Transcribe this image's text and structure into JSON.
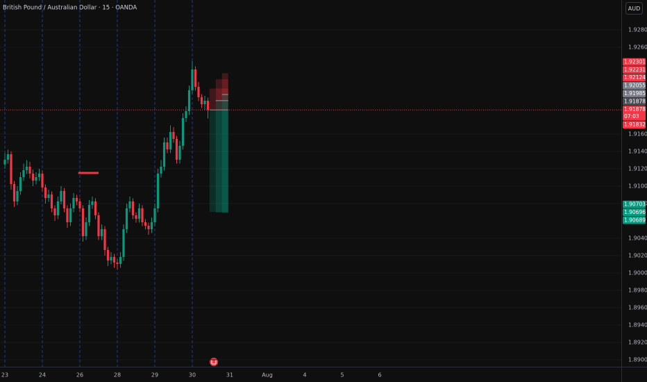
{
  "chart_data": {
    "type": "candlestick",
    "title": "British Pound / Australian Dollar · 15 · OANDA",
    "currency": "AUD",
    "x_labels": [
      "23",
      "24",
      "26",
      "28",
      "29",
      "30",
      "31",
      "Aug",
      "4",
      "5",
      "6"
    ],
    "open": [
      1.9125,
      1.91304,
      1.91368,
      1.91024,
      1.90824,
      1.90944,
      1.91104,
      1.91184,
      1.91224,
      1.91144,
      1.91064,
      1.91104,
      1.91144,
      1.90984,
      1.90864,
      1.90904,
      1.90744,
      1.90664,
      1.90824,
      1.90944,
      1.90744,
      1.90584,
      1.90744,
      1.90864,
      1.90824,
      1.90744,
      1.90424,
      1.90584,
      1.90784,
      1.90824,
      1.90664,
      1.90424,
      1.90504,
      1.90264,
      1.90144,
      1.90184,
      1.9012,
      1.90104,
      1.90184,
      1.90504,
      1.90744,
      1.90824,
      1.90664,
      1.90624,
      1.90744,
      1.90584,
      1.90544,
      1.90504,
      1.90584,
      1.90744,
      1.91144,
      1.91224,
      1.91504,
      1.91424,
      1.91624,
      1.91544,
      1.91304,
      1.91464,
      1.91784,
      1.91864,
      1.92104,
      1.92344,
      1.92144,
      1.92024,
      1.91944,
      1.91984
    ],
    "high": [
      1.9138,
      1.9142,
      1.914,
      1.9106,
      1.91,
      1.9116,
      1.9126,
      1.913,
      1.9128,
      1.9119,
      1.9116,
      1.912,
      1.9118,
      1.9102,
      1.9096,
      1.9094,
      1.9078,
      1.9088,
      1.91,
      1.9098,
      1.9078,
      1.908,
      1.9092,
      1.909,
      1.9086,
      1.9078,
      1.9064,
      1.9084,
      1.9088,
      1.9086,
      1.907,
      1.9056,
      1.9054,
      1.903,
      1.9024,
      1.9022,
      1.9016,
      1.9024,
      1.9056,
      1.908,
      1.9088,
      1.9086,
      1.907,
      1.908,
      1.9078,
      1.9062,
      1.9058,
      1.9064,
      1.908,
      1.912,
      1.913,
      1.9156,
      1.9156,
      1.917,
      1.9168,
      1.9158,
      1.9152,
      1.9184,
      1.9192,
      1.9216,
      1.9244,
      1.9238,
      1.922,
      1.9206,
      1.9204,
      1.9202
    ],
    "low": [
      1.912,
      1.9126,
      1.9096,
      1.9076,
      1.9078,
      1.909,
      1.9106,
      1.9114,
      1.9109,
      1.91,
      1.9102,
      1.9106,
      1.9094,
      1.908,
      1.9082,
      1.907,
      1.906,
      1.9062,
      1.9079,
      1.907,
      1.9052,
      1.9054,
      1.907,
      1.9078,
      1.907,
      1.9036,
      1.9038,
      1.9054,
      1.9074,
      1.9062,
      1.9038,
      1.9038,
      1.902,
      1.9008,
      1.901,
      1.9006,
      1.9004,
      1.9006,
      1.9014,
      1.9046,
      1.907,
      1.9062,
      1.9058,
      1.9058,
      1.9054,
      1.905,
      1.9044,
      1.9046,
      1.9054,
      1.907,
      1.911,
      1.9118,
      1.9138,
      1.9138,
      1.915,
      1.9126,
      1.9126,
      1.9142,
      1.9174,
      1.9182,
      1.9206,
      1.921,
      1.9198,
      1.919,
      1.9188,
      1.9178
    ],
    "close": [
      1.91304,
      1.91368,
      1.91024,
      1.90824,
      1.90944,
      1.91104,
      1.91184,
      1.91224,
      1.91144,
      1.91064,
      1.91104,
      1.91144,
      1.90984,
      1.90864,
      1.90904,
      1.90744,
      1.90664,
      1.90824,
      1.90944,
      1.90744,
      1.90584,
      1.90744,
      1.90864,
      1.90824,
      1.90744,
      1.90424,
      1.90584,
      1.90784,
      1.90824,
      1.90664,
      1.90424,
      1.90504,
      1.90264,
      1.90144,
      1.90184,
      1.9012,
      1.90104,
      1.90184,
      1.90504,
      1.90744,
      1.90824,
      1.90664,
      1.90624,
      1.90744,
      1.90584,
      1.90544,
      1.90504,
      1.90584,
      1.90744,
      1.91144,
      1.91224,
      1.91504,
      1.91424,
      1.91624,
      1.91544,
      1.91304,
      1.91464,
      1.91784,
      1.91864,
      1.92104,
      1.92344,
      1.92144,
      1.92024,
      1.91944,
      1.91984,
      1.91878
    ],
    "up_color": "#089981",
    "down_color": "#f23645",
    "ylim": [
      1.8892,
      1.93144
    ],
    "yticks": [
      {
        "value": 1.928,
        "label": "1.92800"
      },
      {
        "value": 1.926,
        "label": "1.92600"
      },
      {
        "value": 1.916,
        "label": "1.91600"
      },
      {
        "value": 1.914,
        "label": "1.91400"
      },
      {
        "value": 1.912,
        "label": "1.91200"
      },
      {
        "value": 1.91,
        "label": "1.91000"
      },
      {
        "value": 1.908,
        "label": "1.90800"
      },
      {
        "value": 1.904,
        "label": "1.90400"
      },
      {
        "value": 1.902,
        "label": "1.90200"
      },
      {
        "value": 1.9,
        "label": "1.90000"
      },
      {
        "value": 1.898,
        "label": "1.89800"
      },
      {
        "value": 1.896,
        "label": "1.89600"
      },
      {
        "value": 1.894,
        "label": "1.89400"
      },
      {
        "value": 1.892,
        "label": "1.89200"
      },
      {
        "value": 1.89,
        "label": "1.89000"
      }
    ],
    "grid": true,
    "positions": [
      {
        "entry": 1.91878,
        "stop": 1.92124,
        "target": 1.90703
      },
      {
        "entry": 1.91985,
        "stop": 1.92231,
        "target": 1.90696
      },
      {
        "entry": 1.92055,
        "stop": 1.92301,
        "target": 1.90689
      }
    ],
    "last_price": 1.91878,
    "countdown": "07:03",
    "marker_price": 1.91832,
    "level_line": 1.91152
  }
}
